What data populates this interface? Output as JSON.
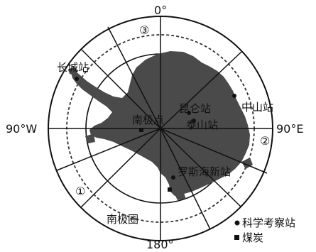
{
  "map": {
    "meridian_labels": {
      "top": "0°",
      "bottom": "180°",
      "left": "90°W",
      "right": "90°E"
    },
    "region_markers": {
      "one": "①",
      "two": "②",
      "three": "③"
    },
    "stations": {
      "great_wall": "长城站",
      "zhongshan": "中山站",
      "kunlun": "昆仑站",
      "taishan": "泰山站",
      "ross_sea": "罗斯海新站"
    },
    "south_pole": "南极点",
    "antarctic_circle": "南极圈",
    "legend": {
      "station": "科学考察站",
      "coal": "煤炭"
    },
    "colors": {
      "land": "#4a4a4a",
      "line": "#111111",
      "background": "#ffffff"
    }
  }
}
